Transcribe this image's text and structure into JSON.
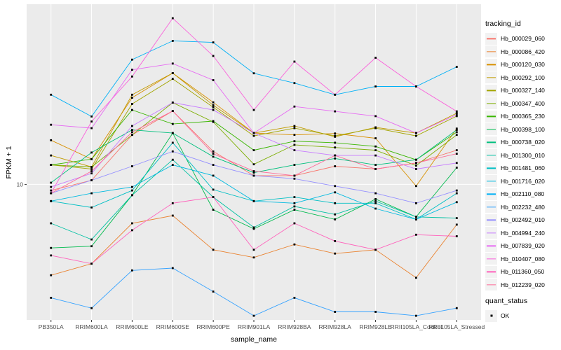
{
  "figure": {
    "xlabel": "sample_name",
    "ylabel": "FPKM + 1"
  },
  "legend": {
    "title": "tracking_id",
    "quant": {
      "title": "quant_status",
      "items": [
        "OK"
      ]
    }
  },
  "style": {
    "panel_bg": "#EBEBEB",
    "grid_color": "#FFFFFF",
    "marker_color": "#000000",
    "tick_color": "#333333",
    "tick_label_color": "#4D4D4D",
    "legend_key_bg": "#F2F2F2"
  },
  "chart_data": {
    "type": "line",
    "title": "",
    "xlabel": "sample_name",
    "ylabel": "FPKM + 1",
    "y_scale": "log10",
    "y_domain": [
      2,
      85
    ],
    "y_breaks": [
      10
    ],
    "y_tick_labels": [
      "10"
    ],
    "grid": "major",
    "legend_position": "right",
    "marker": "black-square",
    "categories": [
      "PB350LA",
      "RRIM600LA",
      "RRIM600LE",
      "RRIM600SE",
      "RRIM600PE",
      "RRIM901LA",
      "RRIM928BA",
      "RRIM928LA",
      "RRIM928LE",
      "RRII105LA_Control",
      "RRII105LA_Stressed"
    ],
    "series": [
      {
        "name": "Hb_000029_060",
        "color": "#F8766D",
        "values": [
          9.3,
          10.5,
          18,
          23.9,
          14.8,
          11.1,
          11.1,
          12.4,
          12,
          12.9,
          15
        ]
      },
      {
        "name": "Hb_000086_420",
        "color": "#EA8331",
        "values": [
          3.4,
          3.9,
          6.3,
          6.9,
          4.6,
          4.2,
          4.9,
          4.4,
          4.6,
          3.3,
          6.2
        ]
      },
      {
        "name": "Hb_000120_030",
        "color": "#D89000",
        "values": [
          16.9,
          13.5,
          28,
          37.5,
          26.5,
          18.4,
          18,
          18.3,
          17.3,
          9.8,
          19.4
        ]
      },
      {
        "name": "Hb_000292_100",
        "color": "#C09B00",
        "values": [
          14.1,
          12.3,
          29,
          37.5,
          25.6,
          18.4,
          20,
          17.6,
          19.7,
          18.4,
          23.3
        ]
      },
      {
        "name": "Hb_000327_140",
        "color": "#A3A500",
        "values": [
          12.6,
          12,
          26,
          35,
          25,
          17.8,
          19.5,
          17.8,
          19.5,
          17.8,
          22.5
        ]
      },
      {
        "name": "Hb_000347_400",
        "color": "#7CAE00",
        "values": [
          12.6,
          12.3,
          18,
          26.4,
          21,
          12.7,
          16,
          15.5,
          15,
          12.5,
          18
        ]
      },
      {
        "name": "Hb_000365_230",
        "color": "#39B600",
        "values": [
          12.6,
          13.5,
          24.2,
          20.5,
          21.2,
          15,
          16.7,
          16.4,
          15.7,
          13.4,
          18.6
        ]
      },
      {
        "name": "Hb_000398_100",
        "color": "#00BB4E",
        "values": [
          4.7,
          4.8,
          8.8,
          18.4,
          7.4,
          5.9,
          7.4,
          6.6,
          8.4,
          6.8,
          12.2
        ]
      },
      {
        "name": "Hb_000738_020",
        "color": "#00BF7D",
        "values": [
          10.2,
          14.6,
          19.1,
          18.4,
          13.9,
          11.5,
          12.6,
          13.6,
          12.6,
          13.4,
          19.1
        ]
      },
      {
        "name": "Hb_001300_010",
        "color": "#00C1A3",
        "values": [
          6.3,
          5.2,
          8.8,
          13.4,
          8.6,
          6,
          7.7,
          7,
          8.2,
          6.8,
          6.7
        ]
      },
      {
        "name": "Hb_001481_060",
        "color": "#00BFC4",
        "values": [
          8.2,
          7.6,
          9.3,
          16.4,
          9.4,
          8.2,
          8.6,
          8,
          8,
          6.6,
          9
        ]
      },
      {
        "name": "Hb_001716_020",
        "color": "#00BAE0",
        "values": [
          8.2,
          9,
          9.7,
          12.6,
          11.1,
          8.2,
          8,
          9.1,
          7.5,
          6.6,
          8.1
        ]
      },
      {
        "name": "Hb_002110_080",
        "color": "#00B0F6",
        "values": [
          29,
          22.4,
          44,
          55,
          54,
          37.4,
          33.3,
          29,
          32,
          32,
          40.4
        ]
      },
      {
        "name": "Hb_002232_480",
        "color": "#35A2FF",
        "values": [
          2.6,
          2.3,
          3.6,
          3.7,
          2.8,
          2.1,
          2.6,
          2.2,
          2.2,
          2.1,
          2.3
        ]
      },
      {
        "name": "Hb_002492_010",
        "color": "#9590FF",
        "values": [
          9,
          10.5,
          12.4,
          14.8,
          12.6,
          11.1,
          10.7,
          9.8,
          9,
          8,
          9.3
        ]
      },
      {
        "name": "Hb_004994_240",
        "color": "#C77CFF",
        "values": [
          9.7,
          11.4,
          20,
          26.4,
          24.2,
          18.4,
          15,
          14.1,
          14.1,
          12,
          12.9
        ]
      },
      {
        "name": "Hb_007839_020",
        "color": "#E76BF3",
        "values": [
          20.3,
          19.5,
          39,
          42,
          34.5,
          18.4,
          25.2,
          23.8,
          22.5,
          18.4,
          22.9
        ]
      },
      {
        "name": "Hb_010407_080",
        "color": "#FA62DB",
        "values": [
          9,
          21.1,
          36,
          72,
          46,
          24.2,
          43,
          29,
          45,
          32,
          23.8
        ]
      },
      {
        "name": "Hb_011360_050",
        "color": "#FF62BC",
        "values": [
          4.3,
          3.9,
          5.8,
          8,
          8.6,
          4.6,
          6.3,
          5.1,
          4.6,
          5.5,
          5.4
        ]
      },
      {
        "name": "Hb_012239_020",
        "color": "#FF6A98",
        "values": [
          9,
          11.7,
          18.6,
          23.9,
          14.4,
          11.7,
          11.1,
          14.1,
          12,
          12.9,
          14.4
        ]
      }
    ],
    "quant_status": "OK"
  }
}
